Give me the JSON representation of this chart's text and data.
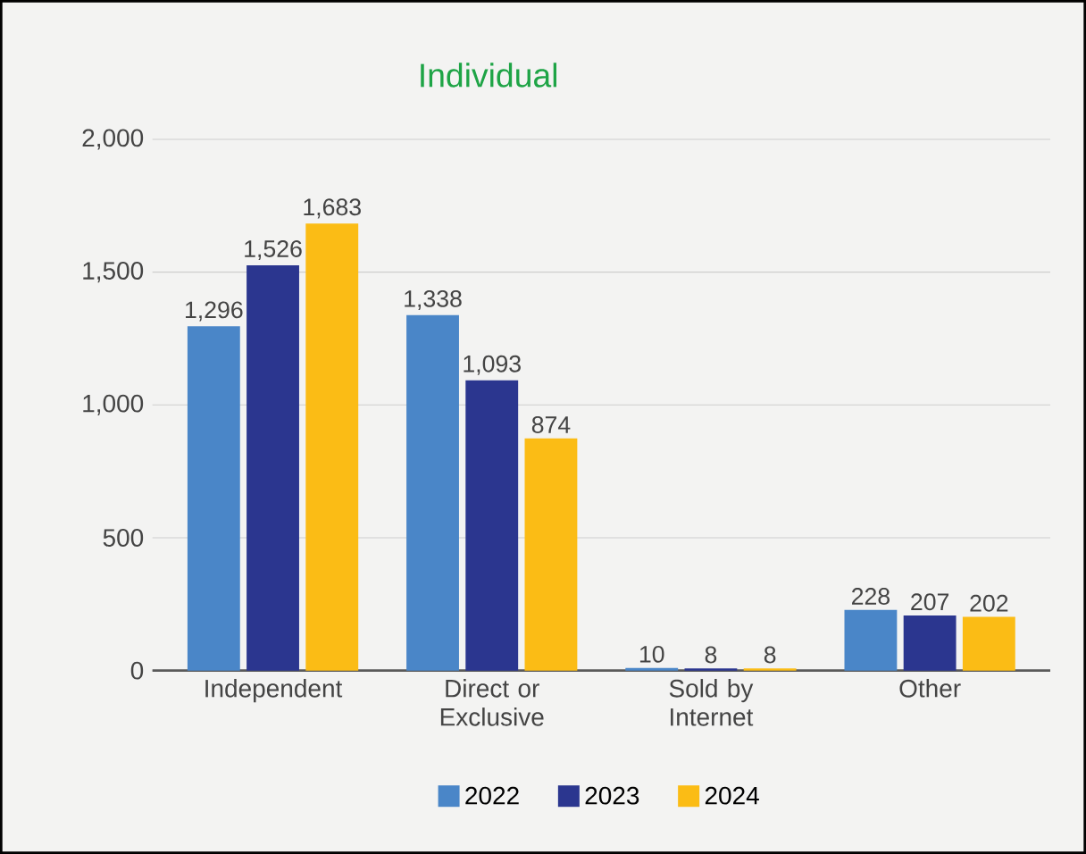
{
  "chart_data": {
    "type": "bar",
    "title": "Individual",
    "categories": [
      "Independent",
      "Direct or Exclusive",
      "Sold by Internet",
      "Other"
    ],
    "series": [
      {
        "name": "2022",
        "color": "#4a86c8",
        "values": [
          1296,
          1338,
          10,
          228
        ],
        "value_labels": [
          "1,296",
          "1,338",
          "10",
          "228"
        ]
      },
      {
        "name": "2023",
        "color": "#2b368f",
        "values": [
          1526,
          1093,
          8,
          207
        ],
        "value_labels": [
          "1,526",
          "1,093",
          "8",
          "207"
        ]
      },
      {
        "name": "2024",
        "color": "#fbbc15",
        "values": [
          1683,
          874,
          8,
          202
        ],
        "value_labels": [
          "1,683",
          "874",
          "8",
          "202"
        ]
      }
    ],
    "ylim": [
      0,
      2000
    ],
    "yticks": [
      0,
      500,
      {
        "value": 1000,
        "label": "1,000"
      },
      {
        "value": 1500,
        "label": "1,500"
      },
      {
        "value": 2000,
        "label": "2,000"
      }
    ],
    "grid": "y",
    "legend": "bottom"
  }
}
